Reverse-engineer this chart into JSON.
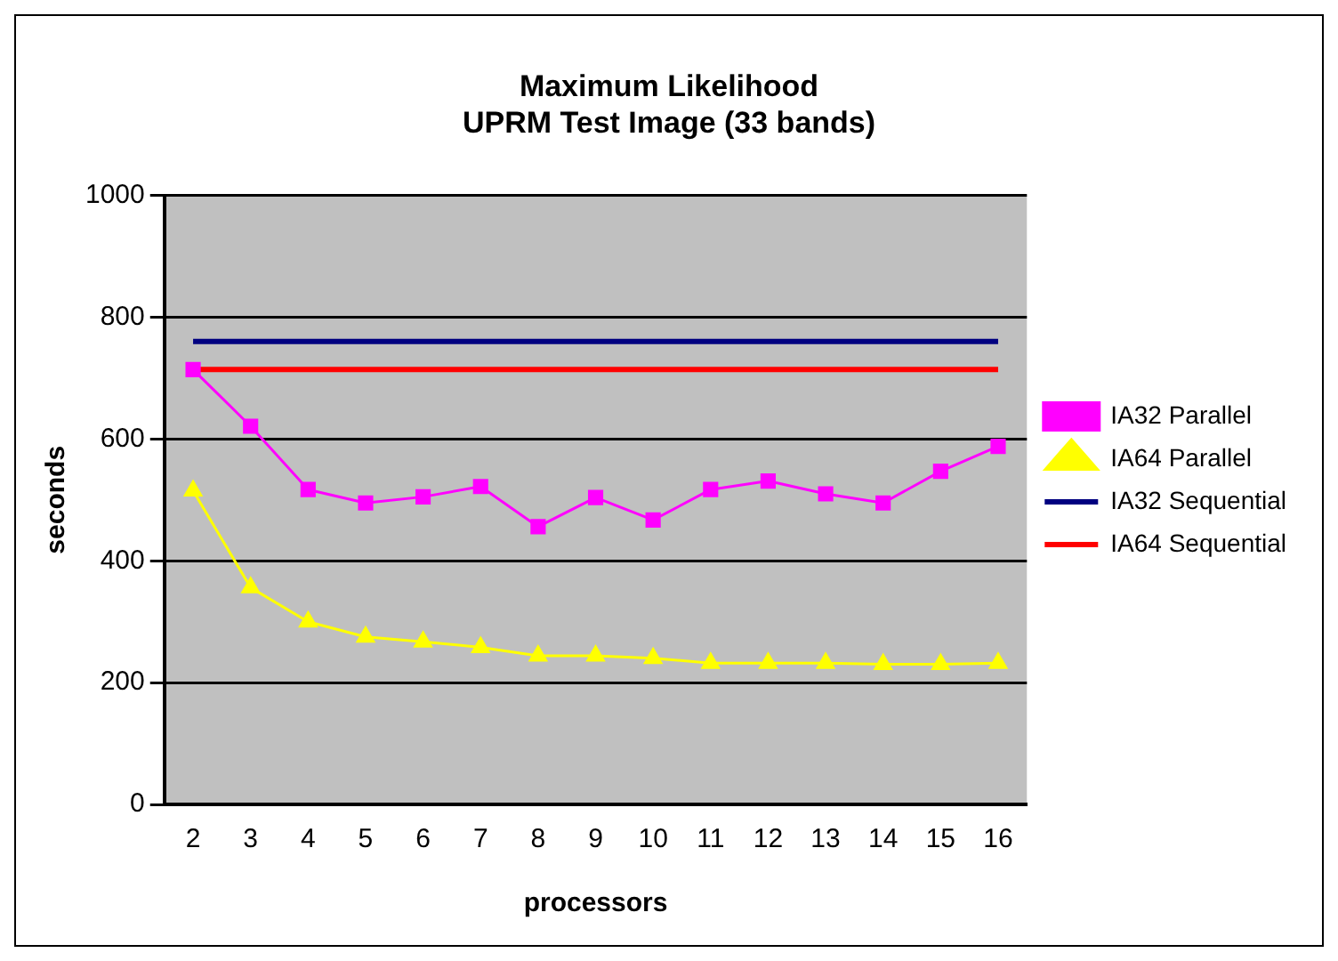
{
  "chart_data": {
    "type": "line",
    "title": [
      "Maximum Likelihood",
      "UPRM Test Image (33 bands)"
    ],
    "xlabel": "processors",
    "ylabel": "seconds",
    "categories": [
      "2",
      "3",
      "4",
      "5",
      "6",
      "7",
      "8",
      "9",
      "10",
      "11",
      "12",
      "13",
      "14",
      "15",
      "16"
    ],
    "series": [
      {
        "name": "IA32 Parallel",
        "color": "#ff00ff",
        "marker": "square",
        "values": [
          714,
          621,
          517,
          495,
          505,
          522,
          456,
          504,
          467,
          517,
          531,
          510,
          495,
          547,
          588
        ]
      },
      {
        "name": "IA64 Parallel",
        "color": "#ffff00",
        "marker": "triangle",
        "values": [
          515,
          356,
          300,
          275,
          267,
          258,
          244,
          244,
          240,
          232,
          232,
          232,
          230,
          230,
          232
        ]
      },
      {
        "name": "IA32 Sequential",
        "color": "#000080",
        "marker": "none",
        "values": [
          760,
          760,
          760,
          760,
          760,
          760,
          760,
          760,
          760,
          760,
          760,
          760,
          760,
          760,
          760
        ]
      },
      {
        "name": "IA64 Sequential",
        "color": "#ff0000",
        "marker": "none",
        "values": [
          714,
          714,
          714,
          714,
          714,
          714,
          714,
          714,
          714,
          714,
          714,
          714,
          714,
          714,
          714
        ]
      }
    ],
    "ylim": [
      0,
      1000
    ],
    "yticks": [
      0,
      200,
      400,
      600,
      800,
      1000
    ],
    "grid": "y",
    "legend": "right"
  }
}
